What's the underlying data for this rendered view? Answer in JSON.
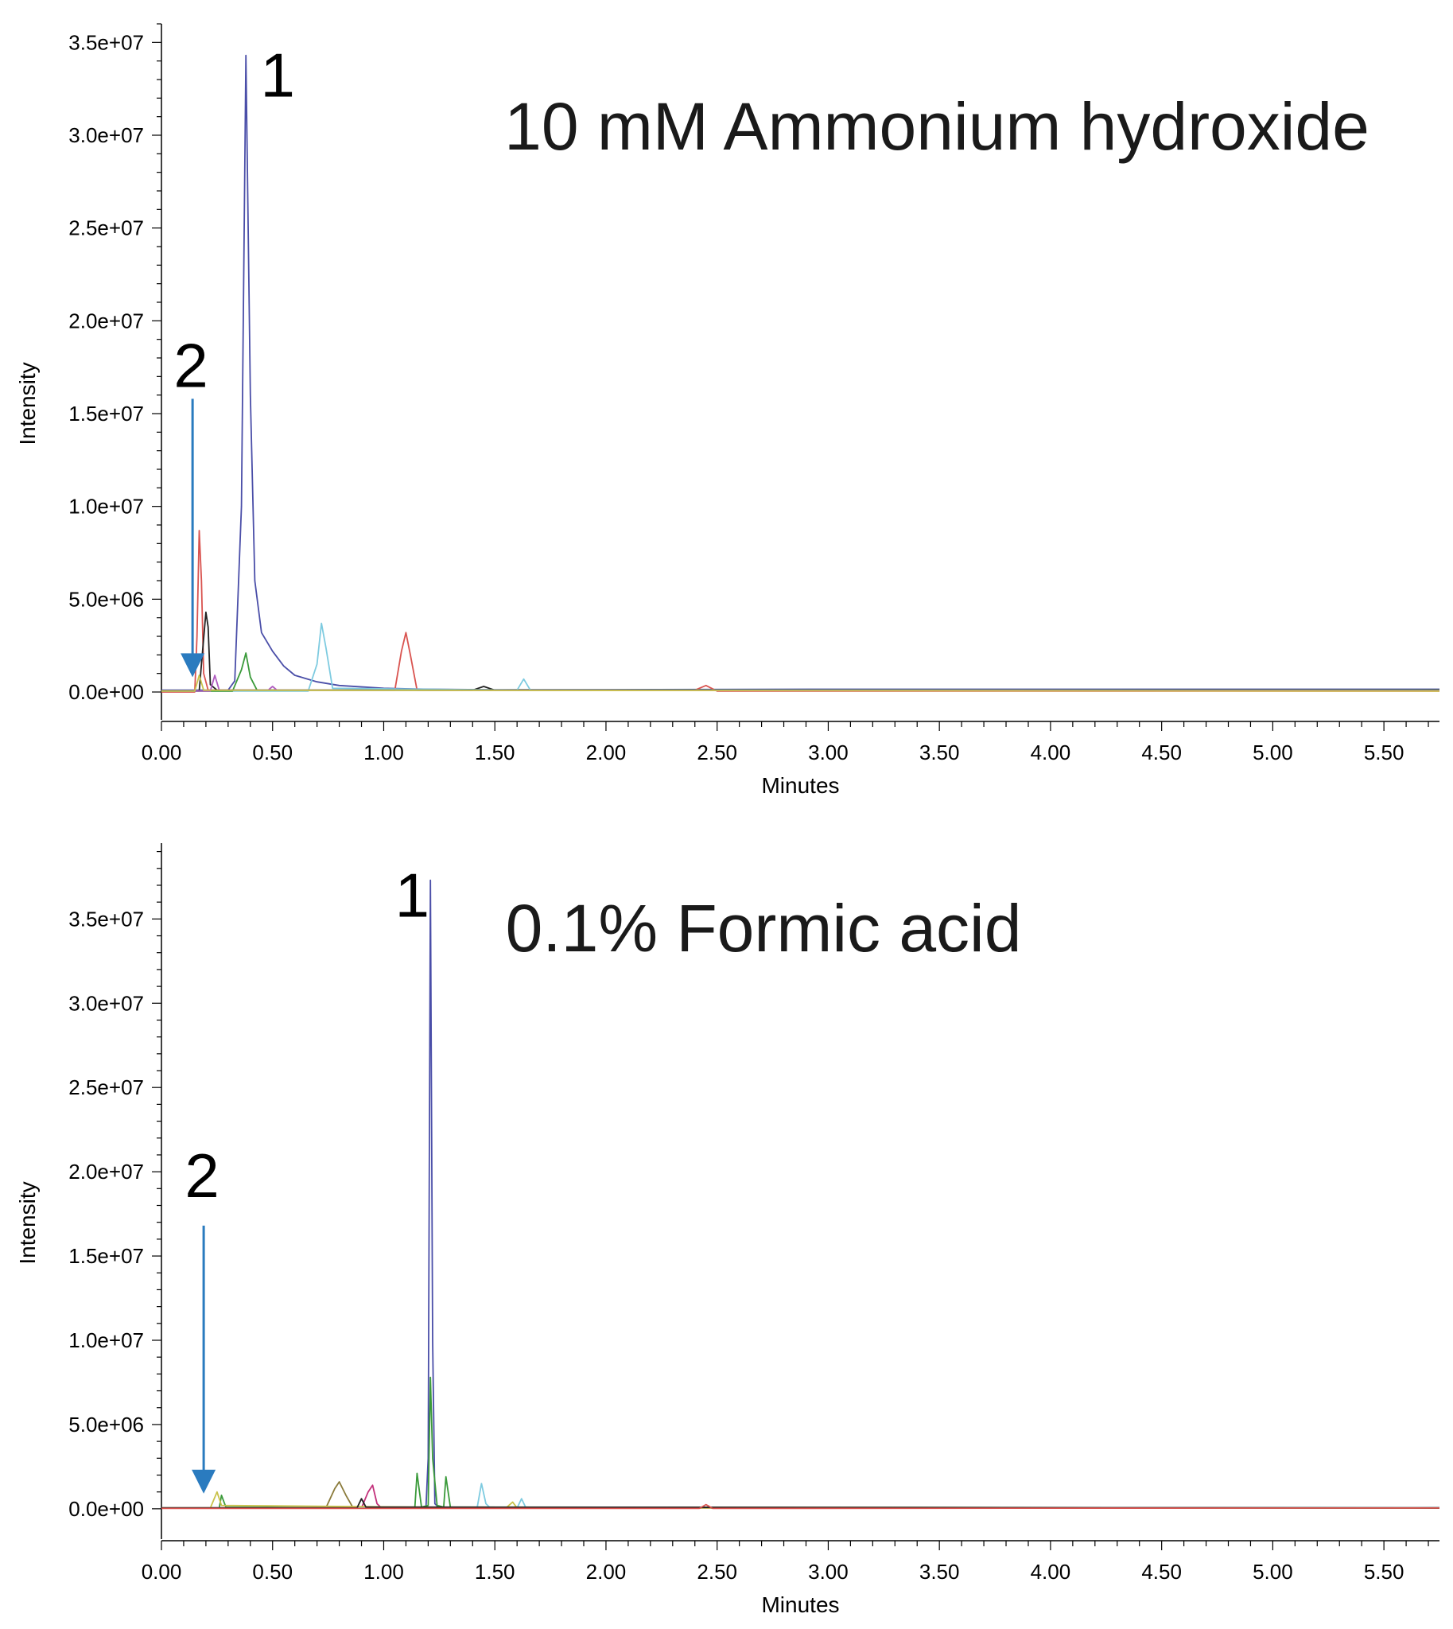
{
  "chart_data": [
    {
      "type": "line",
      "annotation": "10 mM Ammonium hydroxide",
      "xlabel": "Minutes",
      "ylabel": "Intensity",
      "xlim": [
        0,
        5.75
      ],
      "ylim": [
        -1500000,
        36000000
      ],
      "x_ticks": [
        "0.00",
        "0.50",
        "1.00",
        "1.50",
        "2.00",
        "2.50",
        "3.00",
        "3.50",
        "4.00",
        "4.50",
        "5.00",
        "5.50"
      ],
      "y_ticks": [
        "0.0e+00",
        "5.0e+06",
        "1.0e+07",
        "1.5e+07",
        "2.0e+07",
        "2.5e+07",
        "3.0e+07",
        "3.5e+07"
      ],
      "peak_labels": [
        {
          "text": "1",
          "x": 0.38,
          "y": 34300000
        },
        {
          "text": "2",
          "x": 0.14,
          "y": 16000000
        }
      ],
      "arrow": {
        "x": 0.14,
        "y_start": 15800000,
        "y_end": 800000
      },
      "series": [
        {
          "color": "#4a4ea8",
          "points": [
            [
              0,
              0.1
            ],
            [
              0.3,
              0.1
            ],
            [
              0.33,
              0.6
            ],
            [
              0.36,
              10
            ],
            [
              0.38,
              34.3
            ],
            [
              0.4,
              16
            ],
            [
              0.42,
              6
            ],
            [
              0.45,
              3.2
            ],
            [
              0.5,
              2.2
            ],
            [
              0.55,
              1.4
            ],
            [
              0.6,
              0.9
            ],
            [
              0.7,
              0.55
            ],
            [
              0.8,
              0.35
            ],
            [
              1.0,
              0.2
            ],
            [
              1.2,
              0.15
            ],
            [
              1.5,
              0.12
            ],
            [
              3.0,
              0.15
            ],
            [
              5.75,
              0.15
            ]
          ]
        },
        {
          "color": "#d9534f",
          "points": [
            [
              0,
              0.0
            ],
            [
              0.15,
              0.0
            ],
            [
              0.16,
              3
            ],
            [
              0.17,
              8.7
            ],
            [
              0.18,
              6
            ],
            [
              0.19,
              1
            ],
            [
              0.21,
              0.1
            ],
            [
              1.05,
              0.1
            ],
            [
              1.08,
              2.2
            ],
            [
              1.1,
              3.2
            ],
            [
              1.12,
              2.0
            ],
            [
              1.15,
              0.1
            ],
            [
              2.4,
              0.1
            ],
            [
              2.45,
              0.35
            ],
            [
              2.5,
              0.05
            ],
            [
              5.75,
              0.05
            ]
          ]
        },
        {
          "color": "#222222",
          "points": [
            [
              0,
              0.05
            ],
            [
              0.17,
              0.05
            ],
            [
              0.18,
              1.5
            ],
            [
              0.2,
              4.3
            ],
            [
              0.21,
              3.5
            ],
            [
              0.22,
              0.4
            ],
            [
              0.25,
              0.1
            ],
            [
              1.4,
              0.1
            ],
            [
              1.45,
              0.3
            ],
            [
              1.5,
              0.1
            ],
            [
              5.75,
              0.12
            ]
          ]
        },
        {
          "color": "#7ecbe0",
          "points": [
            [
              0,
              0.05
            ],
            [
              0.66,
              0.05
            ],
            [
              0.7,
              1.5
            ],
            [
              0.72,
              3.7
            ],
            [
              0.74,
              2.4
            ],
            [
              0.77,
              0.2
            ],
            [
              1.6,
              0.1
            ],
            [
              1.63,
              0.7
            ],
            [
              1.66,
              0.1
            ],
            [
              5.75,
              0.1
            ]
          ]
        },
        {
          "color": "#3a9a3a",
          "points": [
            [
              0,
              0.05
            ],
            [
              0.32,
              0.05
            ],
            [
              0.36,
              1.2
            ],
            [
              0.38,
              2.1
            ],
            [
              0.4,
              0.8
            ],
            [
              0.43,
              0.1
            ],
            [
              5.75,
              0.1
            ]
          ]
        },
        {
          "color": "#b05cc0",
          "points": [
            [
              0,
              0.05
            ],
            [
              0.22,
              0.05
            ],
            [
              0.24,
              0.9
            ],
            [
              0.26,
              0.1
            ],
            [
              0.48,
              0.1
            ],
            [
              0.5,
              0.3
            ],
            [
              0.52,
              0.1
            ],
            [
              5.75,
              0.08
            ]
          ]
        },
        {
          "color": "#c9c24a",
          "points": [
            [
              0,
              0.05
            ],
            [
              0.15,
              0.05
            ],
            [
              0.17,
              0.9
            ],
            [
              0.19,
              0.1
            ],
            [
              5.75,
              0.05
            ]
          ]
        }
      ]
    },
    {
      "type": "line",
      "annotation": "0.1% Formic acid",
      "xlabel": "Minutes",
      "ylabel": "Intensity",
      "xlim": [
        0,
        5.75
      ],
      "ylim": [
        -1800000,
        39500000
      ],
      "x_ticks": [
        "0.00",
        "0.50",
        "1.00",
        "1.50",
        "2.00",
        "2.50",
        "3.00",
        "3.50",
        "4.00",
        "4.50",
        "5.00",
        "5.50"
      ],
      "y_ticks": [
        "0.0e+00",
        "5.0e+06",
        "1.0e+07",
        "1.5e+07",
        "2.0e+07",
        "2.5e+07",
        "3.0e+07",
        "3.5e+07"
      ],
      "peak_labels": [
        {
          "text": "1",
          "x": 1.2,
          "y": 37500000
        },
        {
          "text": "2",
          "x": 0.19,
          "y": 18500000
        }
      ],
      "arrow": {
        "x": 0.19,
        "y_start": 16800000,
        "y_end": 900000
      },
      "series": [
        {
          "color": "#4a4ea8",
          "points": [
            [
              0,
              0.05
            ],
            [
              1.19,
              0.05
            ],
            [
              1.2,
              3
            ],
            [
              1.21,
              37.3
            ],
            [
              1.22,
              10
            ],
            [
              1.23,
              0.3
            ],
            [
              1.25,
              0.05
            ],
            [
              5.75,
              0.05
            ]
          ]
        },
        {
          "color": "#3a9a3a",
          "points": [
            [
              0,
              0.05
            ],
            [
              0.26,
              0.05
            ],
            [
              0.27,
              0.8
            ],
            [
              0.29,
              0.1
            ],
            [
              1.14,
              0.05
            ],
            [
              1.15,
              2.1
            ],
            [
              1.17,
              0.1
            ],
            [
              1.2,
              0.2
            ],
            [
              1.21,
              7.8
            ],
            [
              1.22,
              3
            ],
            [
              1.24,
              0.2
            ],
            [
              1.27,
              0.1
            ],
            [
              1.28,
              1.9
            ],
            [
              1.3,
              0.1
            ],
            [
              5.75,
              0.05
            ]
          ]
        },
        {
          "color": "#8a7a3a",
          "points": [
            [
              0,
              0.05
            ],
            [
              0.74,
              0.05
            ],
            [
              0.78,
              1.2
            ],
            [
              0.8,
              1.6
            ],
            [
              0.83,
              0.8
            ],
            [
              0.86,
              0.1
            ],
            [
              5.75,
              0.05
            ]
          ]
        },
        {
          "color": "#c2307a",
          "points": [
            [
              0,
              0.05
            ],
            [
              0.9,
              0.05
            ],
            [
              0.93,
              1.0
            ],
            [
              0.95,
              1.4
            ],
            [
              0.97,
              0.3
            ],
            [
              0.99,
              0.05
            ],
            [
              5.75,
              0.05
            ]
          ]
        },
        {
          "color": "#7ecbe0",
          "points": [
            [
              0,
              0.05
            ],
            [
              1.42,
              0.05
            ],
            [
              1.44,
              1.5
            ],
            [
              1.46,
              0.3
            ],
            [
              1.48,
              0.05
            ],
            [
              1.6,
              0.05
            ],
            [
              1.62,
              0.6
            ],
            [
              1.64,
              0.05
            ],
            [
              5.75,
              0.08
            ]
          ]
        },
        {
          "color": "#c9c24a",
          "points": [
            [
              0,
              0.05
            ],
            [
              0.22,
              0.05
            ],
            [
              0.25,
              1.0
            ],
            [
              0.27,
              0.2
            ],
            [
              1.55,
              0.05
            ],
            [
              1.58,
              0.4
            ],
            [
              1.6,
              0.05
            ],
            [
              5.75,
              0.05
            ]
          ]
        },
        {
          "color": "#222222",
          "points": [
            [
              0,
              0.05
            ],
            [
              0.88,
              0.05
            ],
            [
              0.9,
              0.6
            ],
            [
              0.92,
              0.1
            ],
            [
              5.75,
              0.05
            ]
          ]
        },
        {
          "color": "#d9534f",
          "points": [
            [
              0,
              0.02
            ],
            [
              2.42,
              0.02
            ],
            [
              2.45,
              0.25
            ],
            [
              2.48,
              0.02
            ],
            [
              5.75,
              0.05
            ]
          ]
        }
      ]
    }
  ]
}
